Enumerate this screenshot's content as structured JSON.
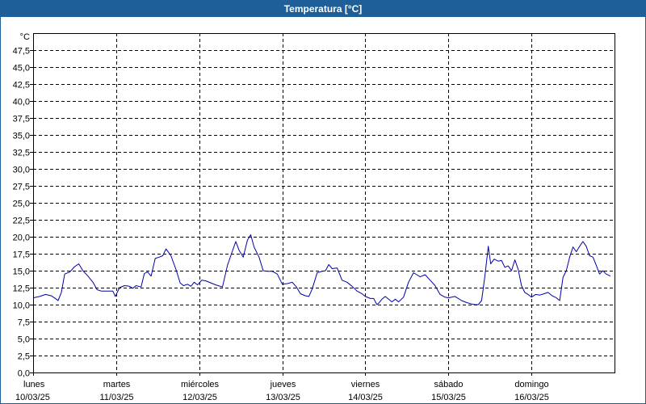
{
  "window": {
    "title": "Temperatura [°C]"
  },
  "colors": {
    "title_bar": "#1f5f99",
    "series_line": "#0000aa",
    "grid": "#000000"
  },
  "chart_data": {
    "type": "line",
    "title": "Temperatura [°C]",
    "ylabel": "°C",
    "ylim": [
      0,
      50
    ],
    "ytick_step": 2.5,
    "ytick_labels": [
      "0,0",
      "2,5",
      "5,0",
      "7,5",
      "10,0",
      "12,5",
      "15,0",
      "17,5",
      "20,0",
      "22,5",
      "25,0",
      "27,5",
      "30,0",
      "32,5",
      "35,0",
      "37,5",
      "40,0",
      "42,5",
      "45,0",
      "47,5"
    ],
    "grid": true,
    "xlim": [
      0,
      7
    ],
    "x_unit": "days from 10/03/25 00:00",
    "x_ticks": [
      {
        "x": 0,
        "day": "lunes",
        "date": "10/03/25"
      },
      {
        "x": 1,
        "day": "martes",
        "date": "11/03/25"
      },
      {
        "x": 2,
        "day": "miércoles",
        "date": "12/03/25"
      },
      {
        "x": 3,
        "day": "jueves",
        "date": "13/03/25"
      },
      {
        "x": 4,
        "day": "viernes",
        "date": "14/03/25"
      },
      {
        "x": 5,
        "day": "sábado",
        "date": "15/03/25"
      },
      {
        "x": 6,
        "day": "domingo",
        "date": "16/03/25"
      }
    ],
    "series": [
      {
        "name": "",
        "points": [
          [
            0.0,
            11.0
          ],
          [
            0.08,
            11.2
          ],
          [
            0.15,
            11.5
          ],
          [
            0.22,
            11.3
          ],
          [
            0.28,
            10.8
          ],
          [
            0.3,
            10.6
          ],
          [
            0.34,
            11.8
          ],
          [
            0.38,
            14.5
          ],
          [
            0.44,
            14.8
          ],
          [
            0.5,
            15.6
          ],
          [
            0.55,
            16.0
          ],
          [
            0.6,
            15.0
          ],
          [
            0.66,
            14.2
          ],
          [
            0.72,
            13.3
          ],
          [
            0.77,
            12.2
          ],
          [
            0.82,
            12.0
          ],
          [
            0.9,
            12.0
          ],
          [
            0.96,
            12.0
          ],
          [
            0.99,
            11.2
          ],
          [
            1.04,
            12.5
          ],
          [
            1.1,
            12.8
          ],
          [
            1.16,
            12.7
          ],
          [
            1.2,
            12.4
          ],
          [
            1.24,
            12.8
          ],
          [
            1.3,
            12.6
          ],
          [
            1.34,
            14.6
          ],
          [
            1.38,
            14.8
          ],
          [
            1.42,
            14.2
          ],
          [
            1.47,
            16.8
          ],
          [
            1.52,
            17.0
          ],
          [
            1.56,
            17.2
          ],
          [
            1.6,
            18.2
          ],
          [
            1.66,
            17.2
          ],
          [
            1.72,
            15.2
          ],
          [
            1.77,
            13.2
          ],
          [
            1.81,
            12.8
          ],
          [
            1.86,
            13.0
          ],
          [
            1.9,
            12.7
          ],
          [
            1.94,
            13.3
          ],
          [
            1.98,
            12.9
          ],
          [
            2.03,
            13.6
          ],
          [
            2.08,
            13.5
          ],
          [
            2.14,
            13.2
          ],
          [
            2.2,
            12.9
          ],
          [
            2.28,
            12.6
          ],
          [
            2.34,
            15.8
          ],
          [
            2.38,
            17.2
          ],
          [
            2.44,
            19.3
          ],
          [
            2.48,
            18.0
          ],
          [
            2.53,
            17.0
          ],
          [
            2.58,
            19.5
          ],
          [
            2.62,
            20.3
          ],
          [
            2.66,
            18.5
          ],
          [
            2.72,
            17.0
          ],
          [
            2.77,
            15.0
          ],
          [
            2.82,
            14.9
          ],
          [
            2.88,
            14.9
          ],
          [
            2.94,
            14.5
          ],
          [
            3.0,
            13.0
          ],
          [
            3.06,
            13.1
          ],
          [
            3.12,
            13.3
          ],
          [
            3.17,
            12.6
          ],
          [
            3.22,
            11.6
          ],
          [
            3.28,
            11.3
          ],
          [
            3.32,
            11.2
          ],
          [
            3.36,
            12.3
          ],
          [
            3.42,
            14.7
          ],
          [
            3.48,
            14.9
          ],
          [
            3.52,
            15.0
          ],
          [
            3.56,
            15.9
          ],
          [
            3.6,
            15.3
          ],
          [
            3.66,
            15.4
          ],
          [
            3.72,
            13.6
          ],
          [
            3.78,
            13.3
          ],
          [
            3.84,
            12.7
          ],
          [
            3.9,
            12.0
          ],
          [
            3.96,
            11.6
          ],
          [
            4.0,
            11.2
          ],
          [
            4.06,
            10.9
          ],
          [
            4.1,
            10.9
          ],
          [
            4.14,
            10.0
          ],
          [
            4.16,
            10.2
          ],
          [
            4.2,
            10.8
          ],
          [
            4.24,
            11.2
          ],
          [
            4.28,
            10.8
          ],
          [
            4.32,
            10.4
          ],
          [
            4.36,
            10.8
          ],
          [
            4.4,
            10.4
          ],
          [
            4.46,
            11.1
          ],
          [
            4.52,
            13.3
          ],
          [
            4.58,
            14.7
          ],
          [
            4.62,
            14.4
          ],
          [
            4.66,
            14.1
          ],
          [
            4.72,
            14.4
          ],
          [
            4.78,
            13.6
          ],
          [
            4.84,
            12.8
          ],
          [
            4.9,
            11.5
          ],
          [
            4.96,
            11.1
          ],
          [
            5.0,
            11.0
          ],
          [
            5.08,
            11.2
          ],
          [
            5.16,
            10.6
          ],
          [
            5.22,
            10.3
          ],
          [
            5.28,
            10.1
          ],
          [
            5.32,
            10.0
          ],
          [
            5.36,
            10.0
          ],
          [
            5.4,
            10.6
          ],
          [
            5.44,
            14.2
          ],
          [
            5.48,
            18.6
          ],
          [
            5.51,
            16.0
          ],
          [
            5.55,
            16.7
          ],
          [
            5.6,
            16.4
          ],
          [
            5.64,
            16.5
          ],
          [
            5.68,
            15.5
          ],
          [
            5.72,
            15.7
          ],
          [
            5.76,
            15.0
          ],
          [
            5.8,
            16.6
          ],
          [
            5.84,
            15.2
          ],
          [
            5.88,
            12.8
          ],
          [
            5.92,
            11.8
          ],
          [
            5.96,
            11.5
          ],
          [
            6.0,
            11.1
          ],
          [
            6.05,
            11.5
          ],
          [
            6.1,
            11.4
          ],
          [
            6.15,
            11.6
          ],
          [
            6.2,
            11.8
          ],
          [
            6.25,
            11.3
          ],
          [
            6.3,
            11.0
          ],
          [
            6.34,
            10.6
          ],
          [
            6.38,
            14.0
          ],
          [
            6.42,
            15.0
          ],
          [
            6.46,
            17.0
          ],
          [
            6.5,
            18.5
          ],
          [
            6.54,
            17.8
          ],
          [
            6.58,
            18.6
          ],
          [
            6.62,
            19.3
          ],
          [
            6.66,
            18.6
          ],
          [
            6.7,
            17.2
          ],
          [
            6.74,
            17.0
          ],
          [
            6.78,
            15.8
          ],
          [
            6.82,
            14.5
          ],
          [
            6.86,
            15.0
          ],
          [
            6.9,
            14.5
          ],
          [
            6.95,
            14.2
          ]
        ]
      }
    ]
  }
}
